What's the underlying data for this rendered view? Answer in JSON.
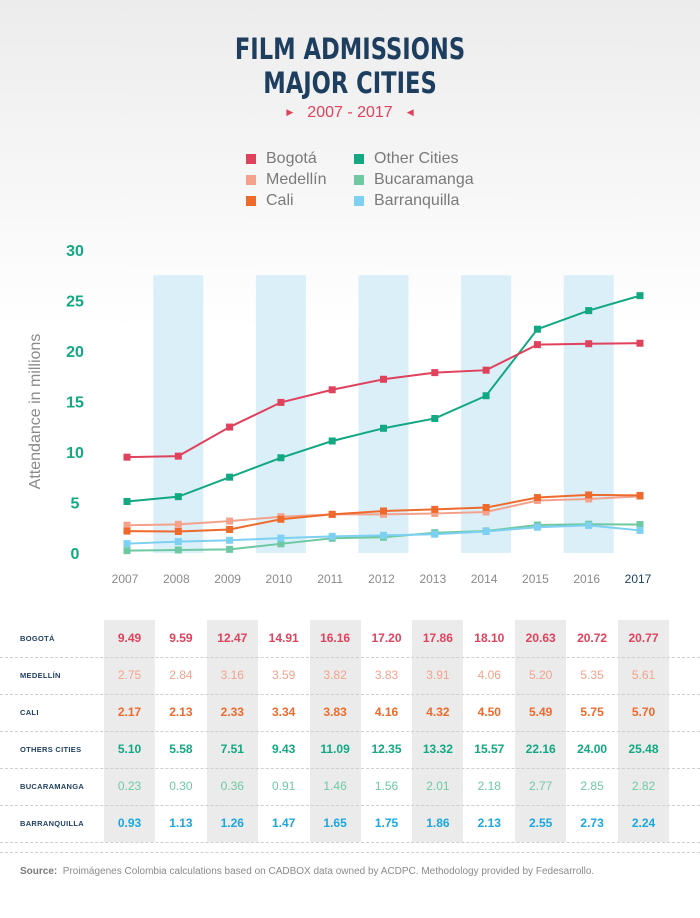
{
  "title_line1": "FILM ADMISSIONS",
  "title_line2": "MAJOR CITIES",
  "subtitle": "2007 - 2017",
  "source_label": "Source:",
  "source_text": "Proimágenes Colombia calculations based on CADBOX data owned by ACDPC. Methodology provided by Fedesarrollo.",
  "chart_data": {
    "type": "line",
    "title": "FILM ADMISSIONS MAJOR CITIES",
    "subtitle": "2007 - 2017",
    "ylabel": "Attendance in millions",
    "xlabel": "",
    "ylim": [
      0,
      30
    ],
    "yticks": [
      0,
      5,
      10,
      15,
      20,
      25,
      30
    ],
    "categories": [
      "2007",
      "2008",
      "2009",
      "2010",
      "2011",
      "2012",
      "2013",
      "2014",
      "2015",
      "2016",
      "2017"
    ],
    "legend_position": "top",
    "grid": false,
    "series": [
      {
        "name": "Bogotá",
        "table_label": "BOGOTÁ",
        "color": "#e0415c",
        "values": [
          9.49,
          9.59,
          12.47,
          14.91,
          16.16,
          17.2,
          17.86,
          18.1,
          20.63,
          20.72,
          20.77
        ],
        "display": [
          "9.49",
          "9.59",
          "12.47",
          "14.91",
          "16.16",
          "17.20",
          "17.86",
          "18.10",
          "20.63",
          "20.72",
          "20.77"
        ]
      },
      {
        "name": "Medellín",
        "table_label": "MEDELLÍN",
        "color": "#f4a28c",
        "values": [
          2.75,
          2.84,
          3.16,
          3.59,
          3.82,
          3.83,
          3.91,
          4.06,
          5.2,
          5.35,
          5.61
        ],
        "display": [
          "2.75",
          "2.84",
          "3.16",
          "3.59",
          "3.82",
          "3.83",
          "3.91",
          "4.06",
          "5.20",
          "5.35",
          "5.61"
        ]
      },
      {
        "name": "Cali",
        "table_label": "CALI",
        "color": "#ee6a2c",
        "values": [
          2.17,
          2.13,
          2.33,
          3.34,
          3.83,
          4.16,
          4.32,
          4.5,
          5.49,
          5.75,
          5.7
        ],
        "display": [
          "2.17",
          "2.13",
          "2.33",
          "3.34",
          "3.83",
          "4.16",
          "4.32",
          "4.50",
          "5.49",
          "5.75",
          "5.70"
        ]
      },
      {
        "name": "Other Cities",
        "table_label": "OTHERS CITIES",
        "color": "#12a882",
        "values": [
          5.1,
          5.58,
          7.51,
          9.43,
          11.09,
          12.35,
          13.32,
          15.57,
          22.16,
          24.0,
          25.48
        ],
        "display": [
          "5.10",
          "5.58",
          "7.51",
          "9.43",
          "11.09",
          "12.35",
          "13.32",
          "15.57",
          "22.16",
          "24.00",
          "25.48"
        ]
      },
      {
        "name": "Bucaramanga",
        "table_label": "BUCARAMANGA",
        "color": "#6ec9a3",
        "values": [
          0.23,
          0.3,
          0.36,
          0.91,
          1.46,
          1.56,
          2.01,
          2.18,
          2.77,
          2.85,
          2.82
        ],
        "display": [
          "0.23",
          "0.30",
          "0.36",
          "0.91",
          "1.46",
          "1.56",
          "2.01",
          "2.18",
          "2.77",
          "2.85",
          "2.82"
        ]
      },
      {
        "name": "Barranquilla",
        "table_label": "BARRANQUILLA",
        "color": "#7dd0f2",
        "values": [
          0.93,
          1.13,
          1.26,
          1.47,
          1.65,
          1.75,
          1.86,
          2.13,
          2.55,
          2.73,
          2.24
        ],
        "display": [
          "0.93",
          "1.13",
          "1.26",
          "1.47",
          "1.65",
          "1.75",
          "1.86",
          "2.13",
          "2.55",
          "2.73",
          "2.24"
        ]
      }
    ],
    "table_text_colors": [
      "#e0415c",
      "#f4a28c",
      "#ee6a2c",
      "#12a882",
      "#6ec9a3",
      "#1aa7e0"
    ],
    "legend_order": [
      "Bogotá",
      "Other Cities",
      "Medellín",
      "Bucaramanga",
      "Cali",
      "Barranquilla"
    ],
    "colors": {
      "title": "#1d3e5e",
      "ytick": "#12a882",
      "band": "#d3ecf7",
      "xtick": "#8a8a8a",
      "xtick_last": "#1d3e5e"
    }
  }
}
